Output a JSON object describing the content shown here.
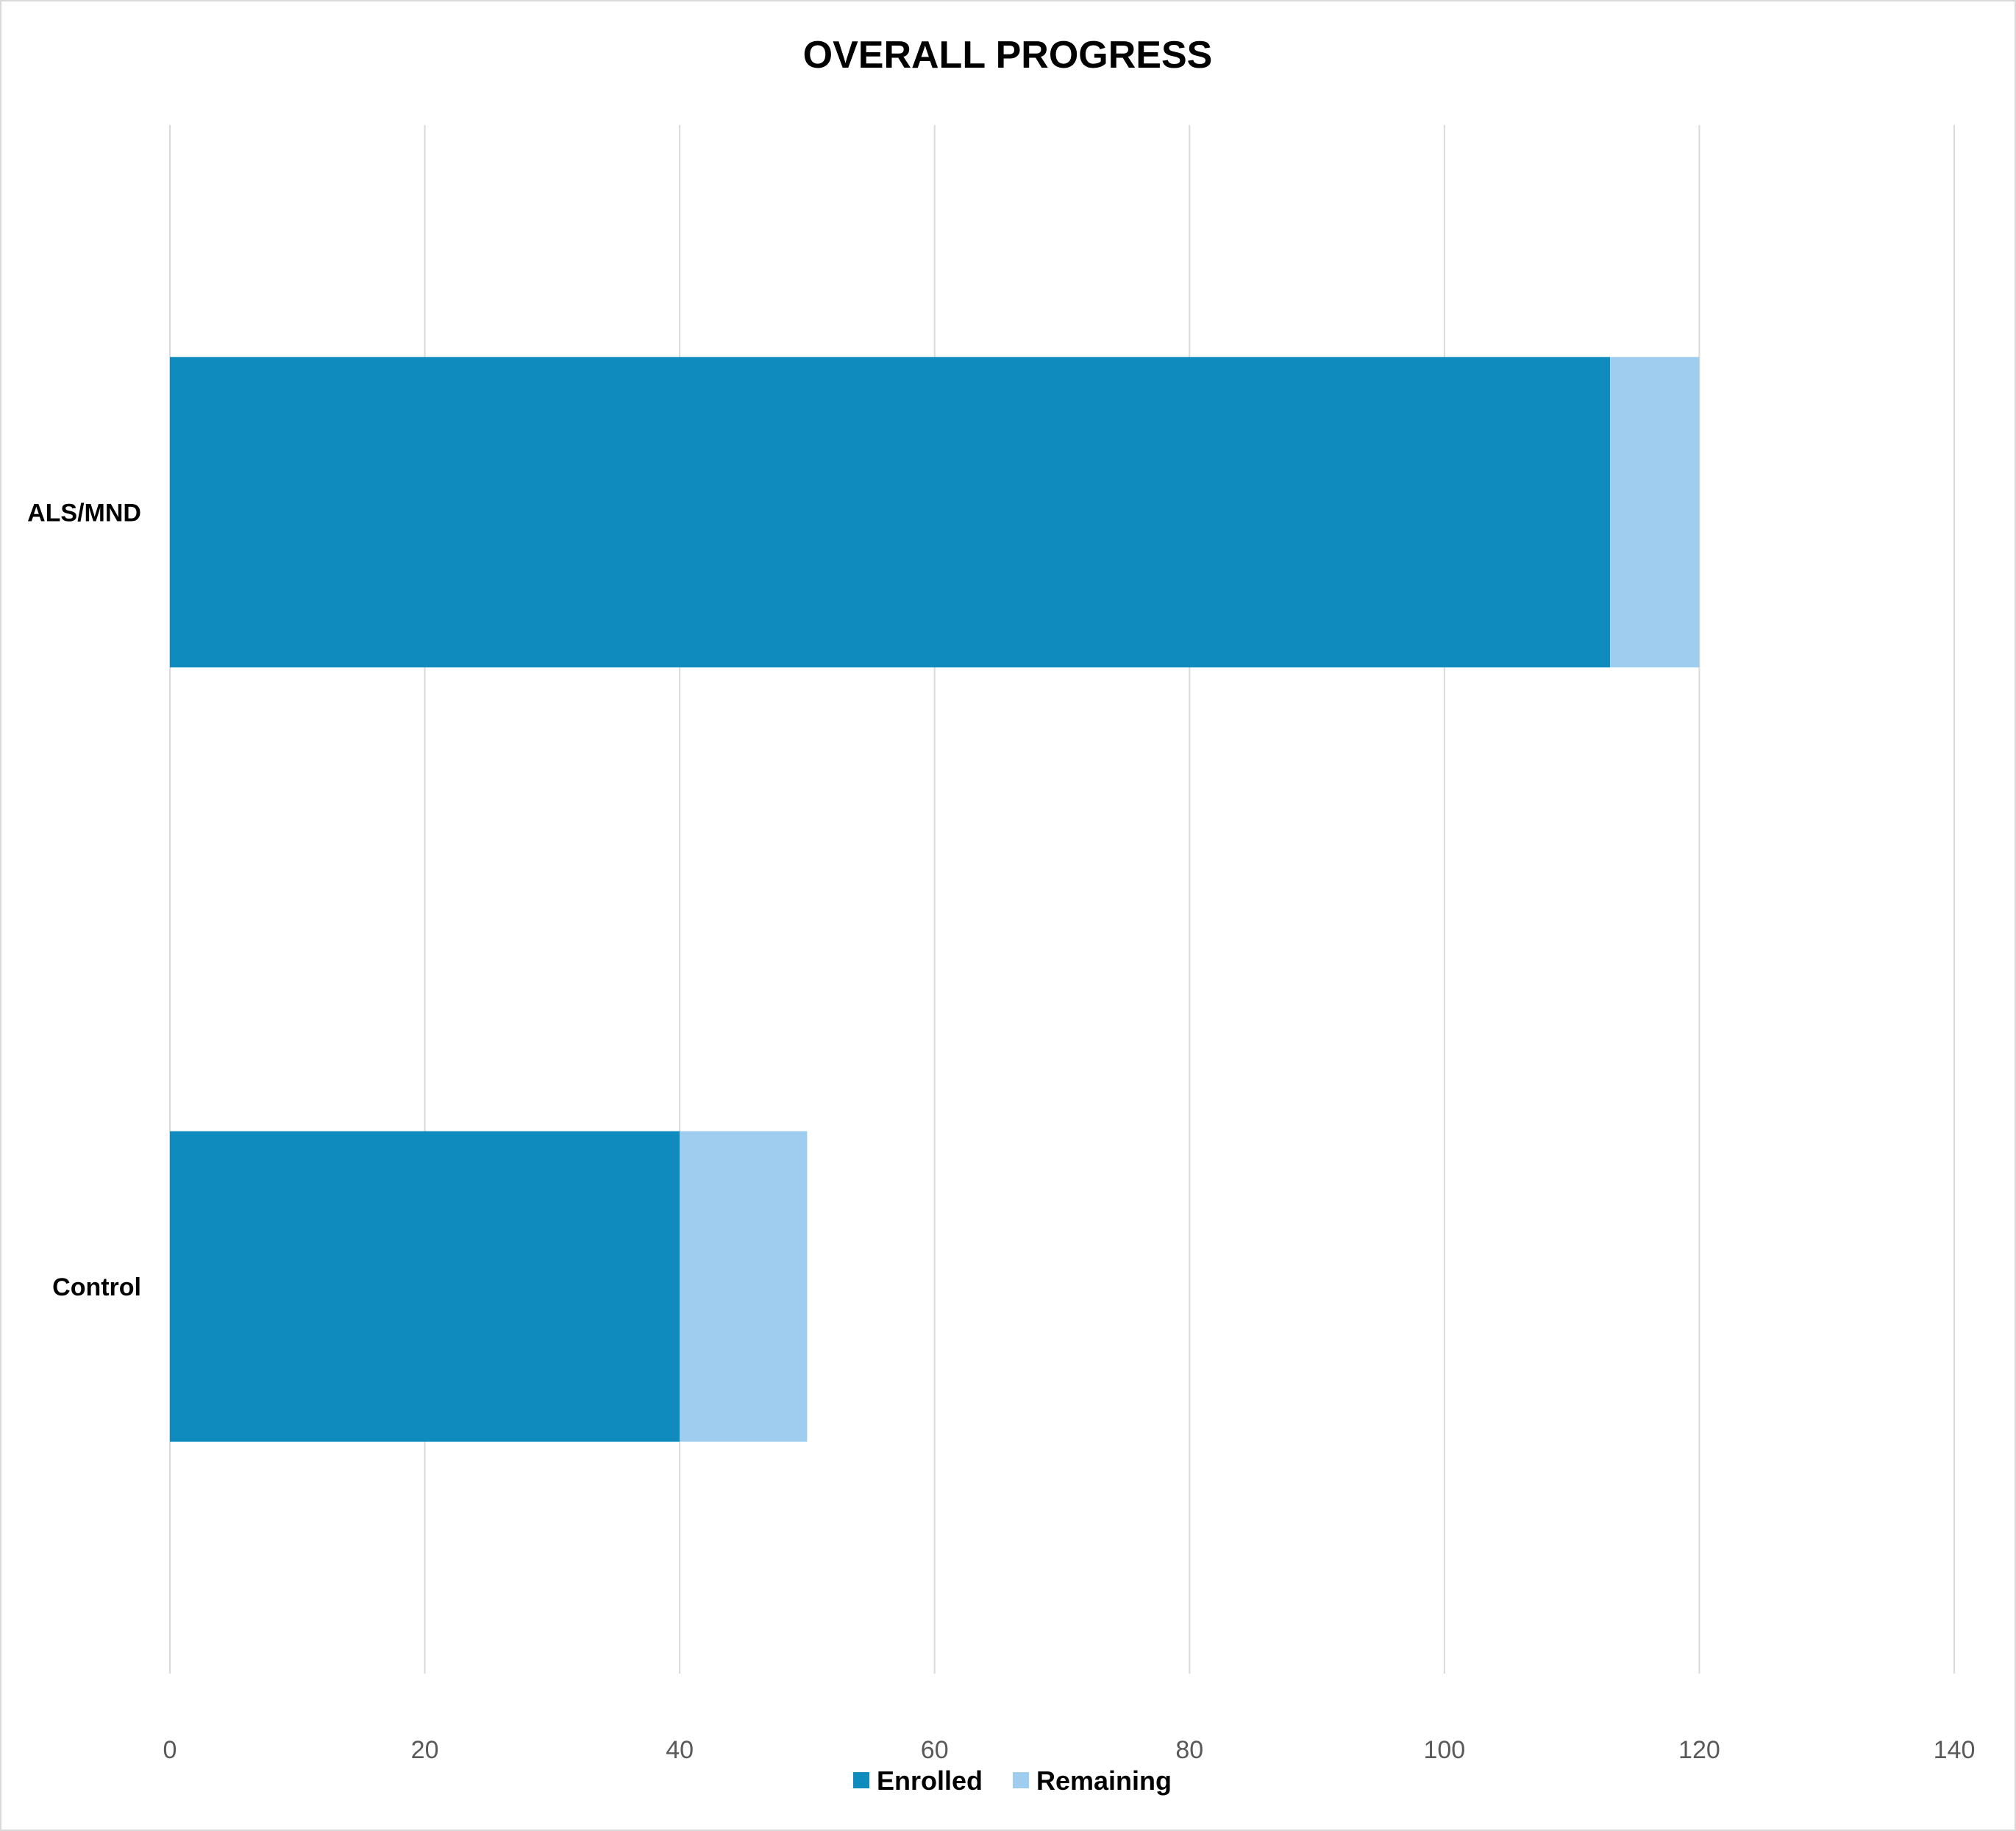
{
  "chart_data": {
    "type": "bar",
    "orientation": "horizontal",
    "stacked": true,
    "title": "OVERALL PROGRESS",
    "categories": [
      "ALS/MND",
      "Control"
    ],
    "series": [
      {
        "name": "Enrolled",
        "color": "#0F8BBE",
        "values": [
          113,
          40
        ]
      },
      {
        "name": "Remaining",
        "color": "#9FCDF0",
        "values": [
          7,
          10
        ]
      }
    ],
    "xlim": [
      0,
      140
    ],
    "xticks": [
      0,
      20,
      40,
      60,
      80,
      100,
      120,
      140
    ],
    "grid": true,
    "legend_position": "bottom"
  }
}
